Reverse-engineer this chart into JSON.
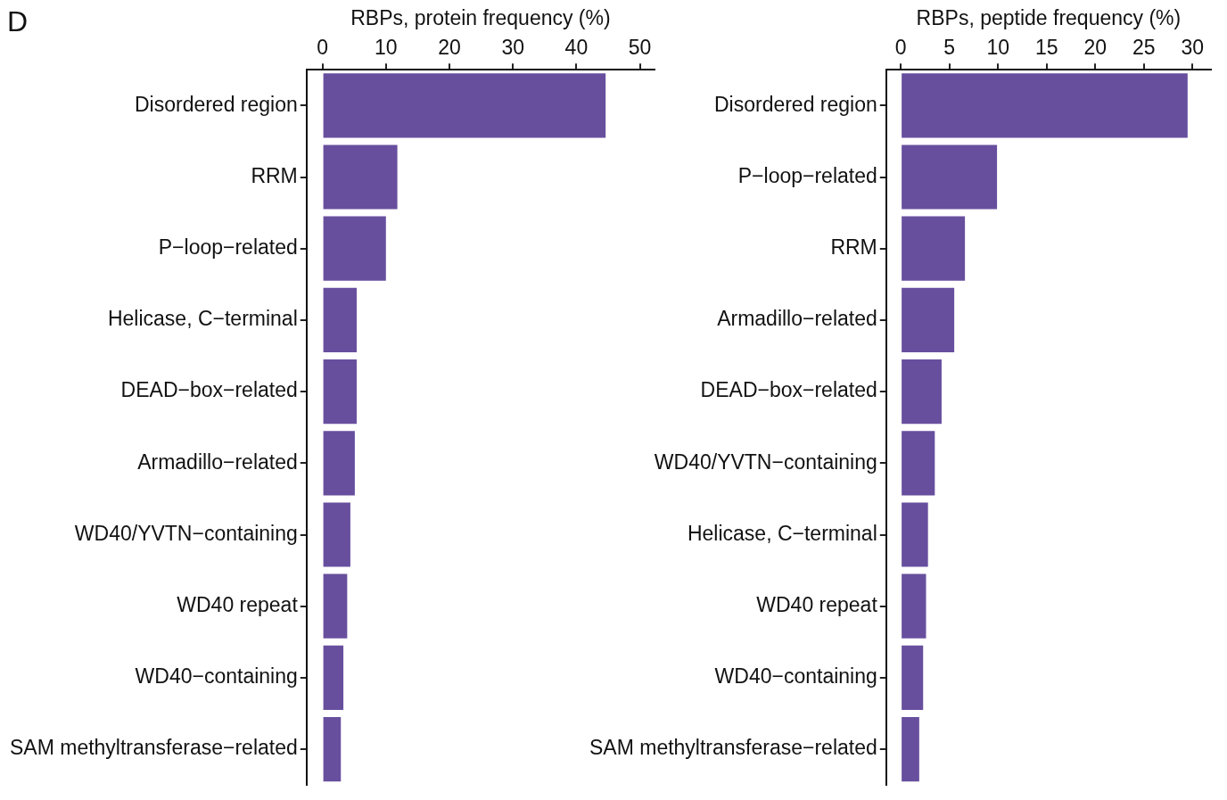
{
  "chart_data": [
    {
      "type": "bar",
      "orientation": "horizontal",
      "xlabel": "RBPs, protein frequency (%)",
      "annotations": [
        "D"
      ],
      "categories": [
        "Disordered region",
        "RRM",
        "P−loop−related",
        "Helicase, C−terminal",
        "DEAD−box−related",
        "Armadillo−related",
        "WD40/YVTN−containing",
        "WD40 repeat",
        "WD40−containing",
        "SAM methyltransferase−related"
      ],
      "values": [
        44.6,
        11.8,
        10.0,
        5.4,
        5.4,
        5.1,
        4.4,
        3.9,
        3.3,
        2.9
      ],
      "color": "#684f9e",
      "xlim": [
        -2.5,
        52.3
      ],
      "xticks": [
        0,
        10,
        20,
        30,
        40,
        50
      ],
      "grid": false,
      "legend": false
    },
    {
      "type": "bar",
      "orientation": "horizontal",
      "xlabel": "RBPs, peptide frequency (%)",
      "categories": [
        "Disordered region",
        "P−loop−related",
        "RRM",
        "Armadillo−related",
        "DEAD−box−related",
        "WD40/YVTN−containing",
        "Helicase, C−terminal",
        "WD40 repeat",
        "WD40−containing",
        "SAM methyltransferase−related"
      ],
      "values": [
        29.5,
        9.9,
        6.6,
        5.5,
        4.2,
        3.5,
        2.8,
        2.6,
        2.3,
        1.9
      ],
      "color": "#684f9e",
      "xlim": [
        -1.5,
        31.9
      ],
      "xticks": [
        0,
        5,
        10,
        15,
        20,
        25,
        30
      ],
      "grid": false,
      "legend": false
    }
  ]
}
